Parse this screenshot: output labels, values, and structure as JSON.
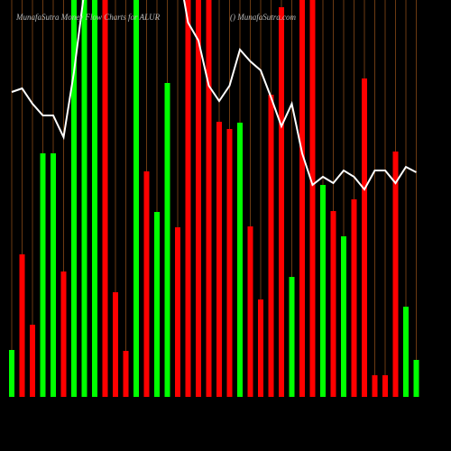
{
  "chart_data": {
    "type": "bar",
    "title": "MunafaSutra  Money Flow Charts for ALUR",
    "subtitle": "() MunafaSutra.com",
    "ylim": [
      0,
      440
    ],
    "grid": true,
    "grid_color": "#6b3a12",
    "line_color": "#ffffff",
    "values": [
      52,
      158,
      80,
      270,
      270,
      139,
      440,
      440,
      440,
      440,
      116,
      51,
      440,
      250,
      205,
      348,
      188,
      440,
      440,
      440,
      305,
      297,
      304,
      189,
      108,
      335,
      432,
      133,
      440,
      440,
      235,
      206,
      178,
      219,
      353,
      24,
      24,
      272,
      100,
      41
    ],
    "colors": [
      "lime",
      "red",
      "red",
      "lime",
      "lime",
      "red",
      "lime",
      "lime",
      "lime",
      "red",
      "red",
      "red",
      "lime",
      "red",
      "lime",
      "lime",
      "red",
      "red",
      "red",
      "red",
      "red",
      "red",
      "lime",
      "red",
      "red",
      "red",
      "red",
      "lime",
      "red",
      "red",
      "lime",
      "red",
      "lime",
      "red",
      "red",
      "red",
      "red",
      "red",
      "lime",
      "lime"
    ],
    "line_values": [
      338,
      342,
      325,
      312,
      312,
      288,
      360,
      450,
      480,
      480,
      480,
      480,
      480,
      480,
      480,
      480,
      480,
      415,
      395,
      345,
      328,
      345,
      385,
      372,
      362,
      332,
      300,
      325,
      270,
      235,
      244,
      237,
      251,
      244,
      230,
      251,
      251,
      237,
      255,
      249
    ]
  }
}
